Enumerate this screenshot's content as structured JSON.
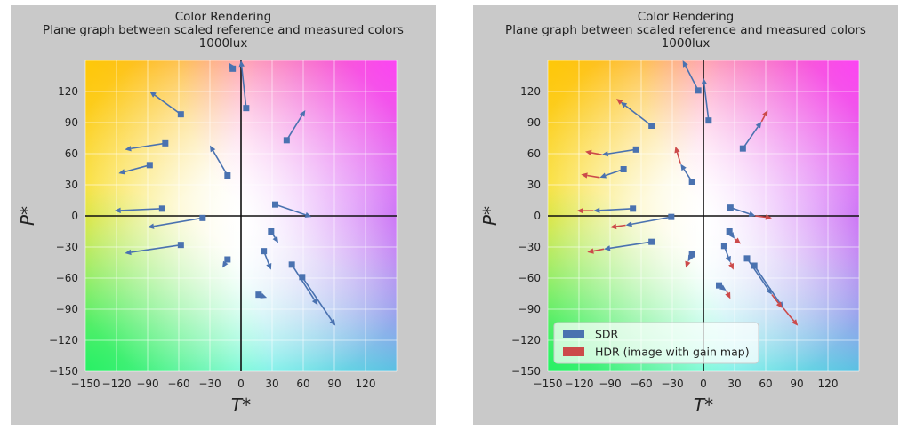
{
  "chart_data": [
    {
      "type": "scatter",
      "title": "Color Rendering",
      "subtitle": "Plane graph between scaled reference and measured colors",
      "subtitle2": "1000lux",
      "xlabel": "T*",
      "ylabel": "P*",
      "xlim": [
        -150,
        150
      ],
      "ylim": [
        -150,
        150
      ],
      "xticks": [
        "−150",
        "−120",
        "−90",
        "−60",
        "−30",
        "0",
        "30",
        "60",
        "90",
        "120"
      ],
      "yticks": [
        "120",
        "90",
        "60",
        "30",
        "0",
        "−30",
        "−60",
        "−90",
        "−120",
        "−150"
      ],
      "grid": true,
      "legend": null,
      "series": [
        {
          "color": "#4a72b0",
          "vectors": [
            {
              "x0": -58,
              "y0": 98,
              "x1": -88,
              "y1": 120
            },
            {
              "x0": -73,
              "y0": 70,
              "x1": -112,
              "y1": 64
            },
            {
              "x0": -88,
              "y0": 49,
              "x1": -118,
              "y1": 41
            },
            {
              "x0": -76,
              "y0": 7,
              "x1": -122,
              "y1": 5
            },
            {
              "x0": -58,
              "y0": -28,
              "x1": -112,
              "y1": -36
            },
            {
              "x0": -37,
              "y0": -2,
              "x1": -90,
              "y1": -11
            },
            {
              "x0": -13,
              "y0": 39,
              "x1": -30,
              "y1": 68
            },
            {
              "x0": -13,
              "y0": -42,
              "x1": -18,
              "y1": -50
            },
            {
              "x0": -8,
              "y0": 142,
              "x1": -12,
              "y1": 148
            },
            {
              "x0": 5,
              "y0": 104,
              "x1": 0,
              "y1": 150
            },
            {
              "x0": 44,
              "y0": 73,
              "x1": 62,
              "y1": 102
            },
            {
              "x0": 33,
              "y0": 11,
              "x1": 68,
              "y1": -1
            },
            {
              "x0": 29,
              "y0": -15,
              "x1": 36,
              "y1": -26
            },
            {
              "x0": 22,
              "y0": -34,
              "x1": 29,
              "y1": -52
            },
            {
              "x0": 17,
              "y0": -76,
              "x1": 25,
              "y1": -79
            },
            {
              "x0": 49,
              "y0": -47,
              "x1": 74,
              "y1": -86
            },
            {
              "x0": 59,
              "y0": -59,
              "x1": 91,
              "y1": -106
            }
          ]
        }
      ]
    },
    {
      "type": "scatter",
      "title": "Color Rendering",
      "subtitle": "Plane graph between scaled reference and measured colors",
      "subtitle2": "1000lux",
      "xlabel": "T*",
      "ylabel": "P*",
      "xlim": [
        -150,
        150
      ],
      "ylim": [
        -150,
        150
      ],
      "xticks": [
        "−150",
        "−120",
        "−90",
        "−60",
        "−30",
        "0",
        "30",
        "60",
        "90",
        "120"
      ],
      "yticks": [
        "120",
        "90",
        "60",
        "30",
        "0",
        "−30",
        "−60",
        "−90",
        "−120",
        "−150"
      ],
      "grid": true,
      "legend": "lower-left",
      "series": [
        {
          "name": "SDR",
          "color": "#4a72b0",
          "vectors": [
            {
              "x0": -50,
              "y0": 87,
              "x1": -80,
              "y1": 110
            },
            {
              "x0": -65,
              "y0": 64,
              "x1": -98,
              "y1": 59
            },
            {
              "x0": -77,
              "y0": 45,
              "x1": -100,
              "y1": 37
            },
            {
              "x0": -68,
              "y0": 7,
              "x1": -106,
              "y1": 5
            },
            {
              "x0": -50,
              "y0": -25,
              "x1": -96,
              "y1": -32
            },
            {
              "x0": -31,
              "y0": -1,
              "x1": -75,
              "y1": -9
            },
            {
              "x0": -11,
              "y0": 33,
              "x1": -22,
              "y1": 50
            },
            {
              "x0": -11,
              "y0": -37,
              "x1": -15,
              "y1": -44
            },
            {
              "x0": -5,
              "y0": 121,
              "x1": -20,
              "y1": 150
            },
            {
              "x0": 5,
              "y0": 92,
              "x1": 0,
              "y1": 133
            },
            {
              "x0": 38,
              "y0": 65,
              "x1": 56,
              "y1": 91
            },
            {
              "x0": 26,
              "y0": 8,
              "x1": 50,
              "y1": 0
            },
            {
              "x0": 25,
              "y0": -15,
              "x1": 30,
              "y1": -22
            },
            {
              "x0": 20,
              "y0": -29,
              "x1": 26,
              "y1": -45
            },
            {
              "x0": 15,
              "y0": -67,
              "x1": 22,
              "y1": -72
            },
            {
              "x0": 42,
              "y0": -41,
              "x1": 66,
              "y1": -76
            },
            {
              "x0": 49,
              "y0": -48,
              "x1": 77,
              "y1": -89
            }
          ]
        },
        {
          "name": "HDR (image with gain map)",
          "color": "#cc4a4a",
          "vectors": [
            {
              "x0": -80,
              "y0": 110,
              "x1": -84,
              "y1": 113
            },
            {
              "x0": -98,
              "y0": 59,
              "x1": -114,
              "y1": 62
            },
            {
              "x0": -100,
              "y0": 37,
              "x1": -118,
              "y1": 40
            },
            {
              "x0": -106,
              "y0": 5,
              "x1": -122,
              "y1": 5
            },
            {
              "x0": -96,
              "y0": -32,
              "x1": -112,
              "y1": -35
            },
            {
              "x0": -75,
              "y0": -9,
              "x1": -90,
              "y1": -11
            },
            {
              "x0": -22,
              "y0": 50,
              "x1": -27,
              "y1": 67
            },
            {
              "x0": -15,
              "y0": -44,
              "x1": -17,
              "y1": -50
            },
            {
              "x0": 56,
              "y0": 91,
              "x1": 62,
              "y1": 102
            },
            {
              "x0": 50,
              "y0": 0,
              "x1": 66,
              "y1": -2
            },
            {
              "x0": 30,
              "y0": -22,
              "x1": 36,
              "y1": -27
            },
            {
              "x0": 26,
              "y0": -45,
              "x1": 29,
              "y1": -52
            },
            {
              "x0": 22,
              "y0": -72,
              "x1": 26,
              "y1": -80
            },
            {
              "x0": 66,
              "y0": -76,
              "x1": 76,
              "y1": -89
            },
            {
              "x0": 77,
              "y0": -89,
              "x1": 91,
              "y1": -106
            }
          ]
        }
      ]
    }
  ]
}
